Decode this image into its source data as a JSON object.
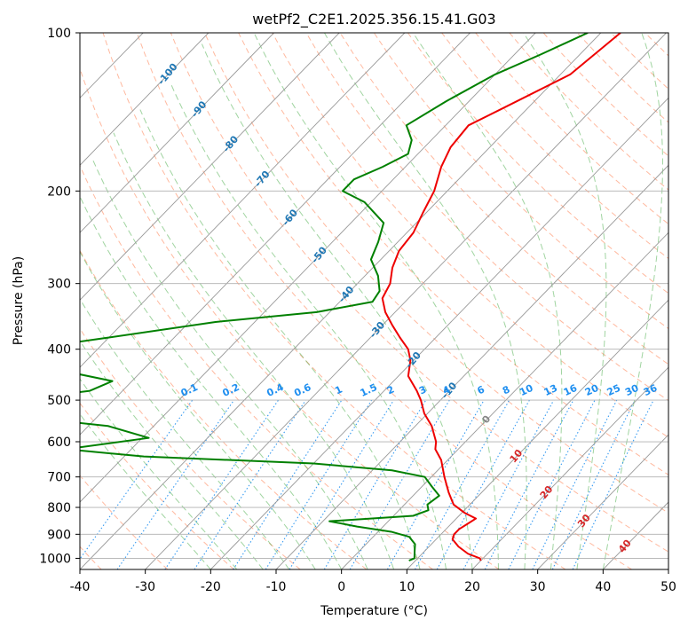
{
  "chart_data": {
    "type": "skew-t",
    "title": "wetPf2_C2E1.2025.356.15.41.G03",
    "xlabel": "Temperature (°C)",
    "ylabel": "Pressure (hPa)",
    "xlim": [
      -40,
      50
    ],
    "ylim": [
      1050,
      100
    ],
    "y_scale": "log",
    "grid": true,
    "x_ticks": [
      -40,
      -30,
      -20,
      -10,
      0,
      10,
      20,
      30,
      40,
      50
    ],
    "y_ticks": [
      100,
      200,
      300,
      400,
      500,
      600,
      700,
      800,
      900,
      1000
    ],
    "colors": {
      "temperature": "#ee0000",
      "dewpoint": "#008000",
      "isotherm": "#999999",
      "isotherm_label": "#1f77b4",
      "dry_adiabat": "#ff7f50",
      "moist_adiabat": "#2ca02c",
      "mixing_ratio": "#1f8ff0",
      "sfc_isotherm_label": "#d62728"
    },
    "isotherm_labels": [
      {
        "T": -100,
        "p": 120
      },
      {
        "T": -90,
        "p": 140
      },
      {
        "T": -80,
        "p": 163
      },
      {
        "T": -70,
        "p": 190
      },
      {
        "T": -60,
        "p": 225
      },
      {
        "T": -50,
        "p": 265
      },
      {
        "T": -40,
        "p": 315
      },
      {
        "T": -30,
        "p": 368
      },
      {
        "T": -20,
        "p": 420
      },
      {
        "T": -10,
        "p": 480
      },
      {
        "T": 0,
        "p": 545
      },
      {
        "T": 10,
        "p": 640
      },
      {
        "T": 20,
        "p": 750
      },
      {
        "T": 30,
        "p": 850
      },
      {
        "T": 40,
        "p": 950
      }
    ],
    "mixing_ratio_labels": [
      "0.1",
      "0.2",
      "0.4",
      "0.6",
      "1",
      "1.5",
      "2",
      "3",
      "4",
      "6",
      "8",
      "10",
      "13",
      "16",
      "20",
      "25",
      "30",
      "36"
    ],
    "series": [
      {
        "key": "temperature",
        "points": [
          {
            "p": 100,
            "T": -37
          },
          {
            "p": 120,
            "T": -38.5
          },
          {
            "p": 140,
            "T": -44
          },
          {
            "p": 150,
            "T": -46.5
          },
          {
            "p": 165,
            "T": -46
          },
          {
            "p": 180,
            "T": -44.5
          },
          {
            "p": 200,
            "T": -42
          },
          {
            "p": 220,
            "T": -40.5
          },
          {
            "p": 240,
            "T": -39
          },
          {
            "p": 260,
            "T": -38.5
          },
          {
            "p": 280,
            "T": -37
          },
          {
            "p": 300,
            "T": -35
          },
          {
            "p": 320,
            "T": -34
          },
          {
            "p": 340,
            "T": -31.5
          },
          {
            "p": 360,
            "T": -28.5
          },
          {
            "p": 380,
            "T": -25.5
          },
          {
            "p": 400,
            "T": -22.5
          },
          {
            "p": 420,
            "T": -20.5
          },
          {
            "p": 450,
            "T": -18.5
          },
          {
            "p": 480,
            "T": -15
          },
          {
            "p": 500,
            "T": -13
          },
          {
            "p": 530,
            "T": -10.5
          },
          {
            "p": 560,
            "T": -7.5
          },
          {
            "p": 600,
            "T": -4.5
          },
          {
            "p": 620,
            "T": -3.5
          },
          {
            "p": 650,
            "T": -1
          },
          {
            "p": 700,
            "T": 2
          },
          {
            "p": 750,
            "T": 5
          },
          {
            "p": 790,
            "T": 7.5
          },
          {
            "p": 820,
            "T": 10.5
          },
          {
            "p": 840,
            "T": 13
          },
          {
            "p": 860,
            "T": 12.5
          },
          {
            "p": 880,
            "T": 12
          },
          {
            "p": 900,
            "T": 12
          },
          {
            "p": 920,
            "T": 12.5
          },
          {
            "p": 950,
            "T": 14.5
          },
          {
            "p": 980,
            "T": 17
          },
          {
            "p": 1000,
            "T": 19.5
          },
          {
            "p": 1010,
            "T": 20
          }
        ]
      },
      {
        "key": "dewpoint",
        "points": [
          {
            "p": 100,
            "T": -42
          },
          {
            "p": 110,
            "T": -46
          },
          {
            "p": 120,
            "T": -50
          },
          {
            "p": 135,
            "T": -53.5
          },
          {
            "p": 150,
            "T": -56
          },
          {
            "p": 160,
            "T": -53
          },
          {
            "p": 170,
            "T": -51.5
          },
          {
            "p": 180,
            "T": -53.5
          },
          {
            "p": 190,
            "T": -56
          },
          {
            "p": 200,
            "T": -56
          },
          {
            "p": 210,
            "T": -51
          },
          {
            "p": 230,
            "T": -45
          },
          {
            "p": 250,
            "T": -43
          },
          {
            "p": 270,
            "T": -41.5
          },
          {
            "p": 290,
            "T": -38
          },
          {
            "p": 310,
            "T": -35.5
          },
          {
            "p": 325,
            "T": -35
          },
          {
            "p": 340,
            "T": -42
          },
          {
            "p": 355,
            "T": -56
          },
          {
            "p": 380,
            "T": -70
          },
          {
            "p": 400,
            "T": -81
          },
          {
            "p": 420,
            "T": -89
          },
          {
            "p": 440,
            "T": -72
          },
          {
            "p": 460,
            "T": -63
          },
          {
            "p": 480,
            "T": -65
          },
          {
            "p": 500,
            "T": -75
          },
          {
            "p": 520,
            "T": -84
          },
          {
            "p": 540,
            "T": -70
          },
          {
            "p": 560,
            "T": -57
          },
          {
            "p": 590,
            "T": -49
          },
          {
            "p": 620,
            "T": -60
          },
          {
            "p": 640,
            "T": -47
          },
          {
            "p": 660,
            "T": -20
          },
          {
            "p": 680,
            "T": -7
          },
          {
            "p": 700,
            "T": -1
          },
          {
            "p": 730,
            "T": 1.5
          },
          {
            "p": 760,
            "T": 4
          },
          {
            "p": 790,
            "T": 3.5
          },
          {
            "p": 810,
            "T": 4.5
          },
          {
            "p": 830,
            "T": 3
          },
          {
            "p": 850,
            "T": -9
          },
          {
            "p": 870,
            "T": -4
          },
          {
            "p": 890,
            "T": 2
          },
          {
            "p": 910,
            "T": 5.5
          },
          {
            "p": 940,
            "T": 7.5
          },
          {
            "p": 970,
            "T": 8.5
          },
          {
            "p": 1000,
            "T": 9.5
          },
          {
            "p": 1010,
            "T": 9
          }
        ]
      }
    ]
  }
}
